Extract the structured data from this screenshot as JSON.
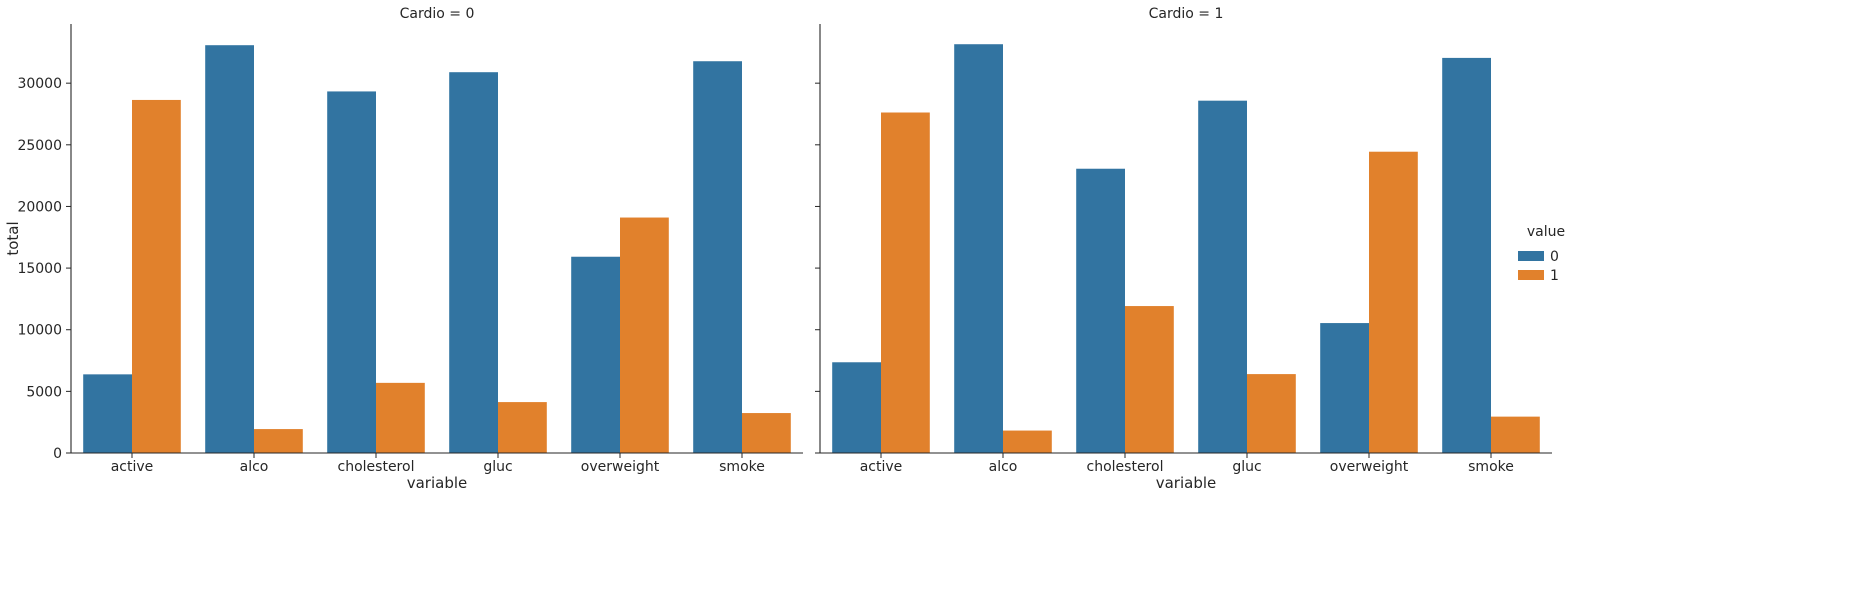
{
  "chart_data": {
    "type": "bar",
    "facet_variable_label": "Cardio",
    "panels": [
      {
        "title": "Cardio = 0",
        "categories": [
          "active",
          "alco",
          "cholesterol",
          "gluc",
          "overweight",
          "smoke"
        ],
        "series": [
          {
            "name": "0",
            "values": [
              6380,
              33080,
              29330,
              30890,
              15920,
              31780
            ]
          },
          {
            "name": "1",
            "values": [
              28640,
              1940,
              5690,
              4130,
              19100,
              3240
            ]
          }
        ]
      },
      {
        "title": "Cardio = 1",
        "categories": [
          "active",
          "alco",
          "cholesterol",
          "gluc",
          "overweight",
          "smoke"
        ],
        "series": [
          {
            "name": "0",
            "values": [
              7360,
              33160,
              23060,
              28580,
              10540,
              32050
            ]
          },
          {
            "name": "1",
            "values": [
              27620,
              1820,
              11920,
              6400,
              24440,
              2950
            ]
          }
        ]
      }
    ],
    "xlabel": "variable",
    "ylabel": "total",
    "ylim": [
      0,
      34800
    ],
    "yticks": [
      0,
      5000,
      10000,
      15000,
      20000,
      25000,
      30000
    ],
    "grid": false,
    "legend": {
      "title": "value",
      "placement": "right-center",
      "entries": [
        "0",
        "1"
      ]
    },
    "colors": {
      "0": "#3274a1",
      "1": "#e1812c"
    }
  }
}
